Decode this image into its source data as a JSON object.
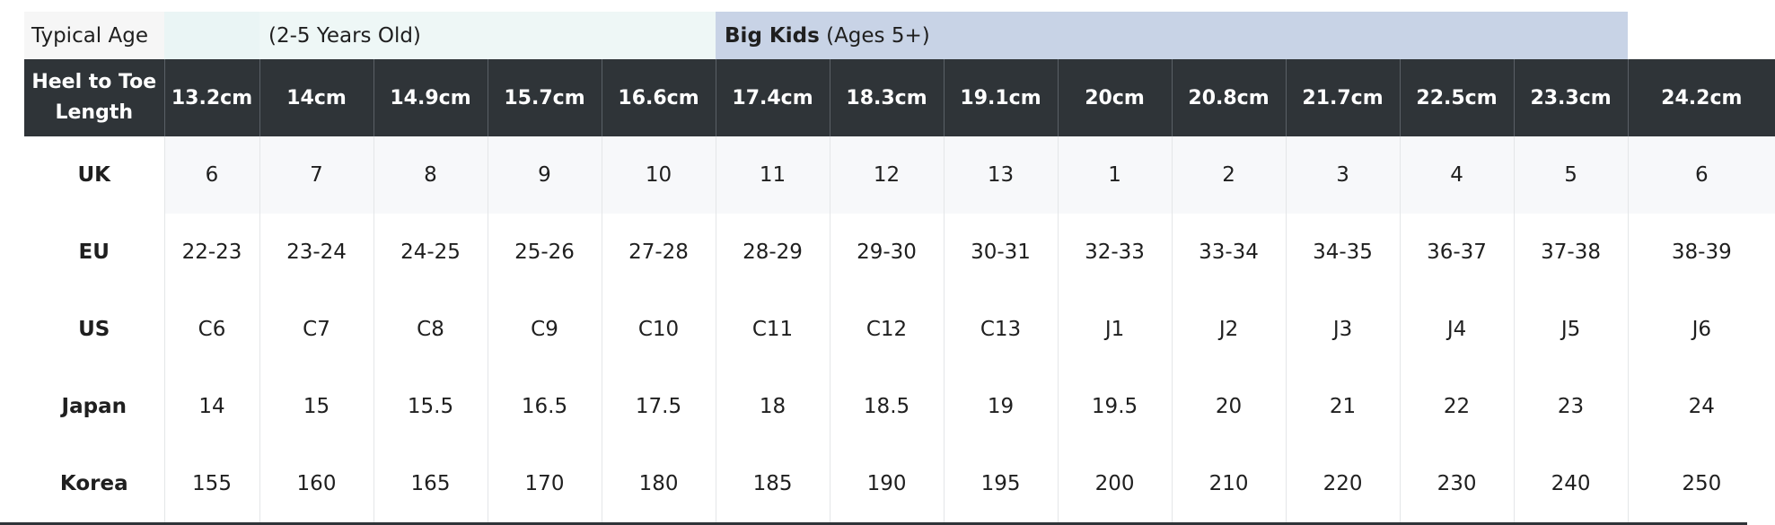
{
  "age_row": {
    "label": "Typical Age",
    "toddler_text": "(2-5 Years Old)",
    "big_kids_bold": "Big Kids",
    "big_kids_text": " (Ages 5+)"
  },
  "header": {
    "label": "Heel to Toe Length",
    "lengths": [
      "13.2cm",
      "14cm",
      "14.9cm",
      "15.7cm",
      "16.6cm",
      "17.4cm",
      "18.3cm",
      "19.1cm",
      "20cm",
      "20.8cm",
      "21.7cm",
      "22.5cm",
      "23.3cm",
      "24.2cm"
    ]
  },
  "rows": [
    {
      "label": "UK",
      "values": [
        "6",
        "7",
        "8",
        "9",
        "10",
        "11",
        "12",
        "13",
        "1",
        "2",
        "3",
        "4",
        "5",
        "6"
      ]
    },
    {
      "label": "EU",
      "values": [
        "22-23",
        "23-24",
        "24-25",
        "25-26",
        "27-28",
        "28-29",
        "29-30",
        "30-31",
        "32-33",
        "33-34",
        "34-35",
        "36-37",
        "37-38",
        "38-39"
      ]
    },
    {
      "label": "US",
      "values": [
        "C6",
        "C7",
        "C8",
        "C9",
        "C10",
        "C11",
        "C12",
        "C13",
        "J1",
        "J2",
        "J3",
        "J4",
        "J5",
        "J6"
      ]
    },
    {
      "label": "Japan",
      "values": [
        "14",
        "15",
        "15.5",
        "16.5",
        "17.5",
        "18",
        "18.5",
        "19",
        "19.5",
        "20",
        "21",
        "22",
        "23",
        "24"
      ]
    },
    {
      "label": "Korea",
      "values": [
        "155",
        "160",
        "165",
        "170",
        "180",
        "185",
        "190",
        "195",
        "200",
        "210",
        "220",
        "230",
        "240",
        "250"
      ]
    }
  ]
}
